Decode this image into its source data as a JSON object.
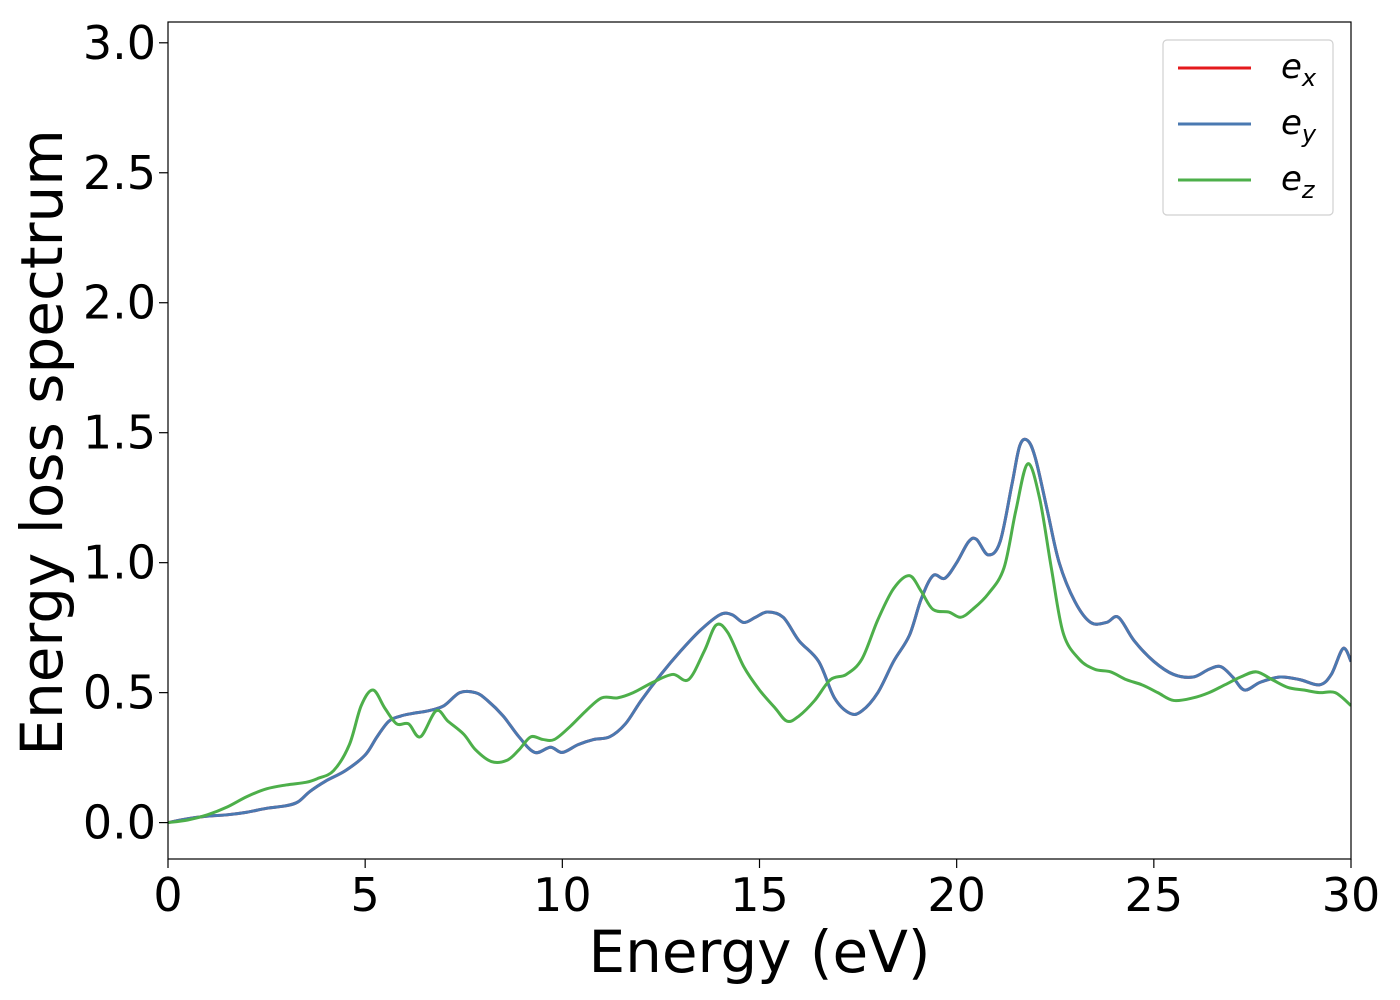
{
  "chart_data": {
    "type": "line",
    "xlabel": "Energy (eV)",
    "ylabel": "Energy loss spectrum",
    "xlim": [
      0,
      30
    ],
    "ylim": [
      -0.14,
      3.08
    ],
    "x_ticks": [
      0,
      5,
      10,
      15,
      20,
      25,
      30
    ],
    "x_tick_labels": [
      "0",
      "5",
      "10",
      "15",
      "20",
      "25",
      "30"
    ],
    "y_ticks": [
      0.0,
      0.5,
      1.0,
      1.5,
      2.0,
      2.5,
      3.0
    ],
    "y_tick_labels": [
      "0.0",
      "0.5",
      "1.0",
      "1.5",
      "2.0",
      "2.5",
      "3.0"
    ],
    "grid": false,
    "legend_position": "top-right",
    "series": [
      {
        "name": "e_x",
        "legend_base": "e",
        "legend_sub": "x",
        "color": "#e41a1c",
        "x": [
          0,
          0.5,
          1,
          1.5,
          2,
          2.5,
          3,
          3.3,
          3.6,
          4,
          4.5,
          5,
          5.3,
          5.6,
          5.9,
          6.2,
          6.6,
          7,
          7.4,
          7.8,
          8.1,
          8.5,
          8.9,
          9.3,
          9.7,
          10,
          10.4,
          10.8,
          11.2,
          11.6,
          12,
          12.5,
          13,
          13.5,
          14,
          14.3,
          14.6,
          14.9,
          15.2,
          15.6,
          16,
          16.5,
          16.9,
          17.3,
          17.6,
          18,
          18.4,
          18.8,
          19.1,
          19.4,
          19.7,
          20,
          20.3,
          20.5,
          20.8,
          21.1,
          21.4,
          21.6,
          21.8,
          22,
          22.3,
          22.6,
          23,
          23.4,
          23.8,
          24.1,
          24.5,
          25,
          25.5,
          26,
          26.4,
          26.7,
          27,
          27.3,
          27.7,
          28.2,
          28.7,
          29.2,
          29.5,
          29.8,
          30
        ],
        "values": [
          0.0,
          0.015,
          0.025,
          0.03,
          0.04,
          0.055,
          0.065,
          0.08,
          0.12,
          0.16,
          0.2,
          0.26,
          0.33,
          0.39,
          0.41,
          0.42,
          0.43,
          0.45,
          0.5,
          0.5,
          0.47,
          0.41,
          0.33,
          0.27,
          0.29,
          0.27,
          0.3,
          0.32,
          0.33,
          0.38,
          0.47,
          0.57,
          0.66,
          0.74,
          0.8,
          0.8,
          0.77,
          0.79,
          0.81,
          0.79,
          0.7,
          0.62,
          0.48,
          0.42,
          0.43,
          0.5,
          0.62,
          0.72,
          0.86,
          0.95,
          0.94,
          1.0,
          1.08,
          1.09,
          1.03,
          1.08,
          1.3,
          1.45,
          1.47,
          1.4,
          1.2,
          1.0,
          0.85,
          0.77,
          0.77,
          0.79,
          0.7,
          0.62,
          0.57,
          0.56,
          0.59,
          0.6,
          0.56,
          0.51,
          0.54,
          0.56,
          0.55,
          0.53,
          0.57,
          0.67,
          0.62
        ]
      },
      {
        "name": "e_y",
        "legend_base": "e",
        "legend_sub": "y",
        "color": "#4a79b1",
        "x": [
          0,
          0.5,
          1,
          1.5,
          2,
          2.5,
          3,
          3.3,
          3.6,
          4,
          4.5,
          5,
          5.3,
          5.6,
          5.9,
          6.2,
          6.6,
          7,
          7.4,
          7.8,
          8.1,
          8.5,
          8.9,
          9.3,
          9.7,
          10,
          10.4,
          10.8,
          11.2,
          11.6,
          12,
          12.5,
          13,
          13.5,
          14,
          14.3,
          14.6,
          14.9,
          15.2,
          15.6,
          16,
          16.5,
          16.9,
          17.3,
          17.6,
          18,
          18.4,
          18.8,
          19.1,
          19.4,
          19.7,
          20,
          20.3,
          20.5,
          20.8,
          21.1,
          21.4,
          21.6,
          21.8,
          22,
          22.3,
          22.6,
          23,
          23.4,
          23.8,
          24.1,
          24.5,
          25,
          25.5,
          26,
          26.4,
          26.7,
          27,
          27.3,
          27.7,
          28.2,
          28.7,
          29.2,
          29.5,
          29.8,
          30
        ],
        "values": [
          0.0,
          0.015,
          0.025,
          0.03,
          0.04,
          0.055,
          0.065,
          0.08,
          0.12,
          0.16,
          0.2,
          0.26,
          0.33,
          0.39,
          0.41,
          0.42,
          0.43,
          0.45,
          0.5,
          0.5,
          0.47,
          0.41,
          0.33,
          0.27,
          0.29,
          0.27,
          0.3,
          0.32,
          0.33,
          0.38,
          0.47,
          0.57,
          0.66,
          0.74,
          0.8,
          0.8,
          0.77,
          0.79,
          0.81,
          0.79,
          0.7,
          0.62,
          0.48,
          0.42,
          0.43,
          0.5,
          0.62,
          0.72,
          0.86,
          0.95,
          0.94,
          1.0,
          1.08,
          1.09,
          1.03,
          1.08,
          1.3,
          1.45,
          1.47,
          1.4,
          1.2,
          1.0,
          0.85,
          0.77,
          0.77,
          0.79,
          0.7,
          0.62,
          0.57,
          0.56,
          0.59,
          0.6,
          0.56,
          0.51,
          0.54,
          0.56,
          0.55,
          0.53,
          0.57,
          0.67,
          0.62
        ]
      },
      {
        "name": "e_z",
        "legend_base": "e",
        "legend_sub": "z",
        "color": "#4daf4a",
        "x": [
          0,
          0.5,
          1,
          1.5,
          2,
          2.5,
          3,
          3.5,
          3.8,
          4.2,
          4.6,
          4.9,
          5.2,
          5.5,
          5.8,
          6.1,
          6.4,
          6.8,
          7.1,
          7.5,
          7.8,
          8.2,
          8.6,
          8.9,
          9.2,
          9.5,
          9.8,
          10.2,
          10.6,
          11,
          11.4,
          11.8,
          12.3,
          12.8,
          13.2,
          13.6,
          13.9,
          14.2,
          14.6,
          15,
          15.4,
          15.7,
          16,
          16.4,
          16.8,
          17.2,
          17.6,
          18,
          18.4,
          18.8,
          19.1,
          19.4,
          19.8,
          20.1,
          20.4,
          20.8,
          21.2,
          21.5,
          21.8,
          22.1,
          22.4,
          22.7,
          23.1,
          23.5,
          23.9,
          24.3,
          24.7,
          25.1,
          25.5,
          26,
          26.4,
          26.8,
          27.2,
          27.6,
          28,
          28.4,
          28.8,
          29.2,
          29.6,
          30
        ],
        "values": [
          0.0,
          0.01,
          0.03,
          0.06,
          0.1,
          0.13,
          0.145,
          0.155,
          0.17,
          0.2,
          0.3,
          0.45,
          0.51,
          0.44,
          0.38,
          0.38,
          0.33,
          0.43,
          0.39,
          0.34,
          0.28,
          0.235,
          0.24,
          0.28,
          0.33,
          0.32,
          0.32,
          0.37,
          0.43,
          0.48,
          0.48,
          0.5,
          0.54,
          0.57,
          0.55,
          0.66,
          0.76,
          0.73,
          0.6,
          0.51,
          0.44,
          0.39,
          0.41,
          0.47,
          0.55,
          0.57,
          0.63,
          0.78,
          0.9,
          0.95,
          0.89,
          0.82,
          0.81,
          0.79,
          0.82,
          0.88,
          0.98,
          1.2,
          1.38,
          1.25,
          0.98,
          0.73,
          0.63,
          0.59,
          0.58,
          0.55,
          0.53,
          0.5,
          0.47,
          0.48,
          0.5,
          0.53,
          0.56,
          0.58,
          0.55,
          0.52,
          0.51,
          0.5,
          0.5,
          0.45
        ]
      }
    ]
  }
}
